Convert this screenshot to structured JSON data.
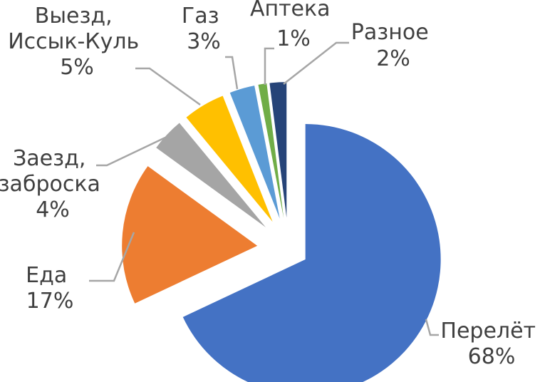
{
  "chart_data": {
    "type": "pie",
    "title": "",
    "exploded": true,
    "legend": "none",
    "slices": [
      {
        "name": "Перелёт",
        "value": 68,
        "label": "68%",
        "color": "#4472c4"
      },
      {
        "name": "Еда",
        "value": 17,
        "label": "17%",
        "color": "#ed7d31"
      },
      {
        "name": "Заезд, заброска",
        "name_lines": [
          "Заезд,",
          "заброска"
        ],
        "value": 4,
        "label": "4%",
        "color": "#a5a5a5"
      },
      {
        "name": "Выезд, Иссык-Куль",
        "name_lines": [
          "Выезд,",
          "Иссык-Куль"
        ],
        "value": 5,
        "label": "5%",
        "color": "#ffc000"
      },
      {
        "name": "Газ",
        "value": 3,
        "label": "3%",
        "color": "#5b9bd5"
      },
      {
        "name": "Аптека",
        "value": 1,
        "label": "1%",
        "color": "#70ad47"
      },
      {
        "name": "Разное",
        "value": 2,
        "label": "2%",
        "color": "#264478"
      }
    ]
  }
}
